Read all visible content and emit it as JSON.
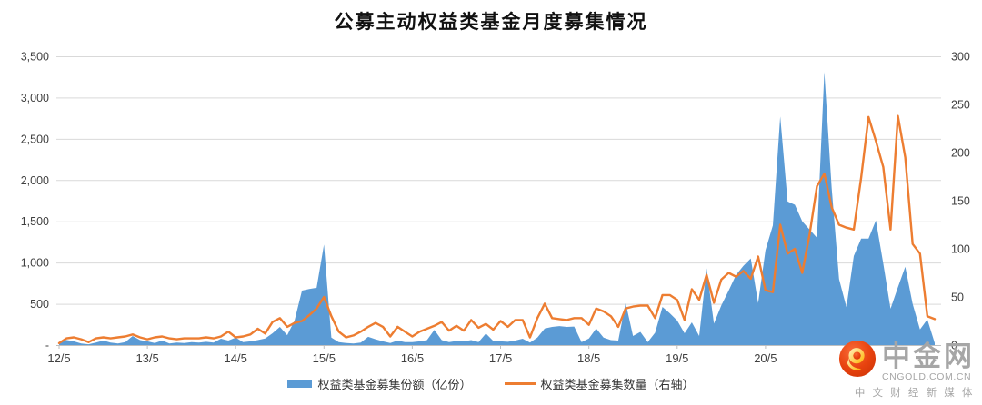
{
  "chart_data": {
    "type": "combo-area-line",
    "title": "公募主动权益类基金月度募集情况",
    "x": [
      "12/5",
      "12/6",
      "12/7",
      "12/8",
      "12/9",
      "12/10",
      "12/11",
      "12/12",
      "13/1",
      "13/2",
      "13/3",
      "13/4",
      "13/5",
      "13/6",
      "13/7",
      "13/8",
      "13/9",
      "13/10",
      "13/11",
      "13/12",
      "14/1",
      "14/2",
      "14/3",
      "14/4",
      "14/5",
      "14/6",
      "14/7",
      "14/8",
      "14/9",
      "14/10",
      "14/11",
      "14/12",
      "15/1",
      "15/2",
      "15/3",
      "15/4",
      "15/5",
      "15/6",
      "15/7",
      "15/8",
      "15/9",
      "15/10",
      "15/11",
      "15/12",
      "16/1",
      "16/2",
      "16/3",
      "16/4",
      "16/5",
      "16/6",
      "16/7",
      "16/8",
      "16/9",
      "16/10",
      "16/11",
      "16/12",
      "17/1",
      "17/2",
      "17/3",
      "17/4",
      "17/5",
      "17/6",
      "17/7",
      "17/8",
      "17/9",
      "17/10",
      "17/11",
      "17/12",
      "18/1",
      "18/2",
      "18/3",
      "18/4",
      "18/5",
      "18/6",
      "18/7",
      "18/8",
      "18/9",
      "18/10",
      "18/11",
      "18/12",
      "19/1",
      "19/2",
      "19/3",
      "19/4",
      "19/5",
      "19/6",
      "19/7",
      "19/8",
      "19/9",
      "19/10",
      "19/11",
      "19/12",
      "20/1",
      "20/2",
      "20/3",
      "20/4",
      "20/5",
      "20/6",
      "20/7",
      "20/8",
      "20/9",
      "20/10",
      "20/11",
      "20/12",
      "21/1",
      "21/2",
      "21/3",
      "21/4",
      "21/5",
      "21/6",
      "21/7",
      "21/8",
      "21/9",
      "21/10",
      "21/11",
      "21/12",
      "22/1",
      "22/2",
      "22/3",
      "22/4"
    ],
    "series": [
      {
        "name": "权益类基金募集份额（亿份）",
        "type": "area",
        "axis": "left",
        "color": "#5B9BD5",
        "values": [
          30,
          62,
          45,
          20,
          10,
          30,
          55,
          30,
          20,
          35,
          110,
          60,
          45,
          25,
          55,
          20,
          30,
          25,
          35,
          30,
          40,
          30,
          77,
          55,
          90,
          35,
          45,
          60,
          80,
          143,
          220,
          120,
          300,
          660,
          680,
          695,
          1220,
          90,
          35,
          25,
          20,
          30,
          100,
          70,
          45,
          25,
          55,
          35,
          35,
          45,
          60,
          185,
          60,
          35,
          50,
          45,
          60,
          35,
          140,
          50,
          45,
          40,
          55,
          77,
          30,
          90,
          200,
          220,
          230,
          220,
          225,
          35,
          80,
          200,
          90,
          60,
          55,
          515,
          110,
          160,
          35,
          150,
          462,
          385,
          297,
          143,
          275,
          110,
          930,
          260,
          480,
          660,
          850,
          960,
          1050,
          510,
          1150,
          1450,
          2770,
          1740,
          1700,
          1500,
          1400,
          1300,
          3310,
          1900,
          800,
          460,
          1080,
          1290,
          1290,
          1510,
          990,
          440,
          700,
          950,
          500,
          190,
          310,
          25
        ]
      },
      {
        "name": "权益类基金募集数量（右轴）",
        "type": "line",
        "axis": "right",
        "color": "#ED7D31",
        "values": [
          2,
          7,
          8,
          6,
          3,
          7,
          8,
          7,
          8,
          9,
          11,
          8,
          6,
          8,
          9,
          7,
          6,
          7,
          7,
          7,
          8,
          7,
          9,
          14,
          8,
          9,
          11,
          17,
          12,
          24,
          28,
          19,
          23,
          25,
          31,
          38,
          50,
          30,
          14,
          8,
          10,
          14,
          19,
          23,
          19,
          9,
          19,
          14,
          9,
          14,
          17,
          20,
          24,
          15,
          20,
          15,
          26,
          18,
          22,
          16,
          25,
          19,
          26,
          26,
          8,
          28,
          43,
          28,
          27,
          26,
          28,
          28,
          21,
          38,
          35,
          30,
          19,
          38,
          40,
          41,
          41,
          28,
          52,
          52,
          47,
          26,
          58,
          47,
          73,
          44,
          68,
          75,
          71,
          77,
          69,
          92,
          57,
          55,
          125,
          95,
          100,
          75,
          115,
          165,
          178,
          143,
          125,
          122,
          120,
          174,
          237,
          212,
          185,
          120,
          238,
          195,
          105,
          95,
          30,
          27
        ]
      }
    ],
    "left_axis": {
      "ylim": [
        0,
        3500
      ],
      "step": 500,
      "tick_labels": [
        "3,500",
        "3,000",
        "2,500",
        "2,000",
        "1,500",
        "1,000",
        "500",
        "-"
      ]
    },
    "right_axis": {
      "ylim": [
        0,
        300
      ],
      "step": 50,
      "tick_labels": [
        "300",
        "250",
        "200",
        "150",
        "100",
        "50",
        "0"
      ]
    },
    "x_tick_labels": [
      "12/5",
      "13/5",
      "14/5",
      "15/5",
      "16/5",
      "17/5",
      "18/5",
      "19/5",
      "20/5"
    ],
    "grid": true,
    "legend_position": "bottom",
    "colors": {
      "grid": "#D9D9D9",
      "axis": "#BFBFBF",
      "tick_text": "#404040"
    }
  },
  "watermark": {
    "site_name": "中金网",
    "domain": "CNGOLD.COM.CN",
    "tagline": "中 文 财 经 新 媒 体",
    "logo_colors": {
      "circle": "#E8430F",
      "swirl": "#FFC107"
    }
  }
}
